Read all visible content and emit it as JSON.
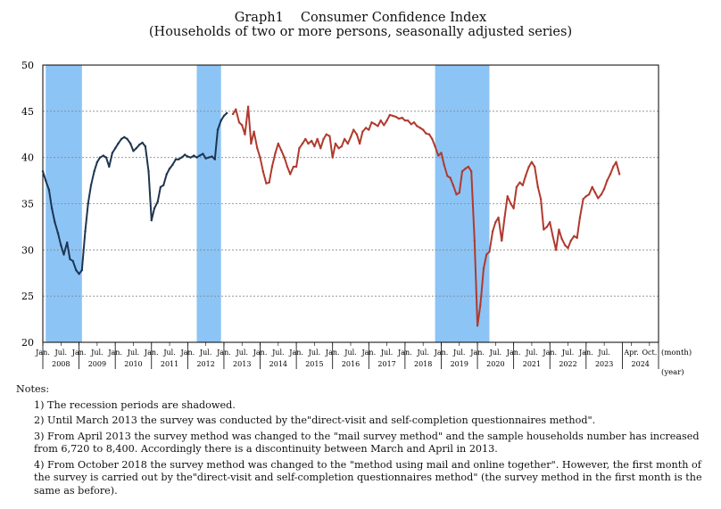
{
  "page": {
    "title": "Graph1　 Consumer Confidence Index",
    "subtitle": "(Households of two or more persons, seasonally adjusted series)"
  },
  "chart_data": {
    "type": "line",
    "title": "Consumer Confidence Index",
    "xlabel_month": "(month)",
    "xlabel_year": "(year)",
    "ylim": [
      20,
      50
    ],
    "yticks": [
      20,
      25,
      30,
      35,
      40,
      45,
      50
    ],
    "x_start_year": 2008,
    "x_end_year": 2024,
    "month_ticks": [
      {
        "label": "Jan.",
        "t": 2008.0
      },
      {
        "label": "Jul.",
        "t": 2008.5
      },
      {
        "label": "Jan.",
        "t": 2009.0
      },
      {
        "label": "Jul.",
        "t": 2009.5
      },
      {
        "label": "Jan.",
        "t": 2010.0
      },
      {
        "label": "Jul.",
        "t": 2010.5
      },
      {
        "label": "Jan.",
        "t": 2011.0
      },
      {
        "label": "Jul.",
        "t": 2011.5
      },
      {
        "label": "Jan.",
        "t": 2012.0
      },
      {
        "label": "Jul.",
        "t": 2012.5
      },
      {
        "label": "Jan.",
        "t": 2013.0
      },
      {
        "label": "Jul.",
        "t": 2013.5
      },
      {
        "label": "Jan.",
        "t": 2014.0
      },
      {
        "label": "Jul.",
        "t": 2014.5
      },
      {
        "label": "Jan.",
        "t": 2015.0
      },
      {
        "label": "Jul.",
        "t": 2015.5
      },
      {
        "label": "Jan.",
        "t": 2016.0
      },
      {
        "label": "Jul.",
        "t": 2016.5
      },
      {
        "label": "Jan.",
        "t": 2017.0
      },
      {
        "label": "Jul.",
        "t": 2017.5
      },
      {
        "label": "Jan.",
        "t": 2018.0
      },
      {
        "label": "Jul.",
        "t": 2018.5
      },
      {
        "label": "Jan.",
        "t": 2019.0
      },
      {
        "label": "Jul.",
        "t": 2019.5
      },
      {
        "label": "Jan.",
        "t": 2020.0
      },
      {
        "label": "Jul.",
        "t": 2020.5
      },
      {
        "label": "Jan.",
        "t": 2021.0
      },
      {
        "label": "Jul.",
        "t": 2021.5
      },
      {
        "label": "Jan.",
        "t": 2022.0
      },
      {
        "label": "Jul.",
        "t": 2022.5
      },
      {
        "label": "Jan.",
        "t": 2023.0
      },
      {
        "label": "Jul.",
        "t": 2023.5
      },
      {
        "label": "Apr.",
        "t": 2024.25
      },
      {
        "label": "Oct.",
        "t": 2024.75
      }
    ],
    "years": [
      "2008",
      "2009",
      "2010",
      "2011",
      "2012",
      "2013",
      "2014",
      "2015",
      "2016",
      "2017",
      "2018",
      "2019",
      "2020",
      "2021",
      "2022",
      "2023",
      "2024"
    ],
    "recession_periods": [
      [
        2008.08,
        2009.08
      ],
      [
        2012.25,
        2012.92
      ],
      [
        2018.83,
        2020.33
      ]
    ],
    "colors": {
      "interview_series": "#1f3550",
      "mail_series": "#b03a2e",
      "recession": "#8cc4f5",
      "grid": "#888888"
    },
    "series": [
      {
        "name": "visit and self-completion method (to Mar. 2013)",
        "color": "#1f3550",
        "points": [
          [
            2008.0,
            38.5
          ],
          [
            2008.08,
            37.5
          ],
          [
            2008.17,
            36.5
          ],
          [
            2008.25,
            34.5
          ],
          [
            2008.33,
            33.0
          ],
          [
            2008.42,
            31.8
          ],
          [
            2008.5,
            30.5
          ],
          [
            2008.58,
            29.5
          ],
          [
            2008.67,
            30.8
          ],
          [
            2008.75,
            29.0
          ],
          [
            2008.83,
            28.8
          ],
          [
            2008.92,
            27.8
          ],
          [
            2009.0,
            27.4
          ],
          [
            2009.08,
            27.8
          ],
          [
            2009.17,
            32.0
          ],
          [
            2009.25,
            35.0
          ],
          [
            2009.33,
            37.0
          ],
          [
            2009.42,
            38.5
          ],
          [
            2009.5,
            39.5
          ],
          [
            2009.58,
            40.0
          ],
          [
            2009.67,
            40.2
          ],
          [
            2009.75,
            40.0
          ],
          [
            2009.83,
            39.0
          ],
          [
            2009.92,
            40.5
          ],
          [
            2010.0,
            41.0
          ],
          [
            2010.08,
            41.5
          ],
          [
            2010.17,
            42.0
          ],
          [
            2010.25,
            42.2
          ],
          [
            2010.33,
            42.0
          ],
          [
            2010.42,
            41.5
          ],
          [
            2010.5,
            40.7
          ],
          [
            2010.58,
            41.0
          ],
          [
            2010.67,
            41.4
          ],
          [
            2010.75,
            41.6
          ],
          [
            2010.83,
            41.2
          ],
          [
            2010.92,
            38.5
          ],
          [
            2011.0,
            33.2
          ],
          [
            2011.08,
            34.5
          ],
          [
            2011.17,
            35.2
          ],
          [
            2011.25,
            36.8
          ],
          [
            2011.33,
            37.0
          ],
          [
            2011.42,
            38.2
          ],
          [
            2011.5,
            38.8
          ],
          [
            2011.58,
            39.2
          ],
          [
            2011.67,
            39.8
          ],
          [
            2011.75,
            39.8
          ],
          [
            2011.83,
            40.0
          ],
          [
            2011.92,
            40.3
          ],
          [
            2012.0,
            40.1
          ],
          [
            2012.08,
            40.0
          ],
          [
            2012.17,
            40.2
          ],
          [
            2012.25,
            40.0
          ],
          [
            2012.33,
            40.2
          ],
          [
            2012.42,
            40.4
          ],
          [
            2012.5,
            39.9
          ],
          [
            2012.58,
            40.0
          ],
          [
            2012.67,
            40.1
          ],
          [
            2012.75,
            39.8
          ],
          [
            2012.83,
            43.0
          ],
          [
            2012.92,
            44.0
          ],
          [
            2013.0,
            44.5
          ],
          [
            2013.08,
            44.8
          ]
        ]
      },
      {
        "name": "mail survey method (from Apr. 2013)",
        "color": "#b03a2e",
        "points": [
          [
            2013.25,
            44.7
          ],
          [
            2013.33,
            45.2
          ],
          [
            2013.42,
            43.8
          ],
          [
            2013.5,
            43.5
          ],
          [
            2013.58,
            42.5
          ],
          [
            2013.67,
            45.5
          ],
          [
            2013.75,
            41.5
          ],
          [
            2013.83,
            42.8
          ],
          [
            2013.92,
            41.0
          ],
          [
            2014.0,
            40.0
          ],
          [
            2014.08,
            38.5
          ],
          [
            2014.17,
            37.2
          ],
          [
            2014.25,
            37.3
          ],
          [
            2014.33,
            39.0
          ],
          [
            2014.42,
            40.5
          ],
          [
            2014.5,
            41.5
          ],
          [
            2014.58,
            40.8
          ],
          [
            2014.67,
            40.0
          ],
          [
            2014.75,
            39.0
          ],
          [
            2014.83,
            38.2
          ],
          [
            2014.92,
            39.0
          ],
          [
            2015.0,
            39.0
          ],
          [
            2015.08,
            41.0
          ],
          [
            2015.17,
            41.5
          ],
          [
            2015.25,
            42.0
          ],
          [
            2015.33,
            41.5
          ],
          [
            2015.42,
            41.8
          ],
          [
            2015.5,
            41.2
          ],
          [
            2015.58,
            42.0
          ],
          [
            2015.67,
            41.0
          ],
          [
            2015.75,
            42.0
          ],
          [
            2015.83,
            42.5
          ],
          [
            2015.92,
            42.3
          ],
          [
            2016.0,
            40.0
          ],
          [
            2016.08,
            41.5
          ],
          [
            2016.17,
            41.0
          ],
          [
            2016.25,
            41.2
          ],
          [
            2016.33,
            42.0
          ],
          [
            2016.42,
            41.5
          ],
          [
            2016.5,
            42.2
          ],
          [
            2016.58,
            43.0
          ],
          [
            2016.67,
            42.5
          ],
          [
            2016.75,
            41.5
          ],
          [
            2016.83,
            42.8
          ],
          [
            2016.92,
            43.2
          ],
          [
            2017.0,
            43.0
          ],
          [
            2017.08,
            43.8
          ],
          [
            2017.17,
            43.6
          ],
          [
            2017.25,
            43.4
          ],
          [
            2017.33,
            44.0
          ],
          [
            2017.42,
            43.5
          ],
          [
            2017.5,
            44.0
          ],
          [
            2017.58,
            44.6
          ],
          [
            2017.67,
            44.5
          ],
          [
            2017.75,
            44.4
          ],
          [
            2017.83,
            44.2
          ],
          [
            2017.92,
            44.3
          ],
          [
            2018.0,
            44.0
          ],
          [
            2018.08,
            44.0
          ],
          [
            2018.17,
            43.6
          ],
          [
            2018.25,
            43.8
          ],
          [
            2018.33,
            43.4
          ],
          [
            2018.42,
            43.2
          ],
          [
            2018.5,
            43.0
          ],
          [
            2018.58,
            42.6
          ],
          [
            2018.67,
            42.5
          ],
          [
            2018.75,
            42.0
          ],
          [
            2018.83,
            41.2
          ],
          [
            2018.92,
            40.2
          ],
          [
            2019.0,
            40.5
          ],
          [
            2019.08,
            39.2
          ],
          [
            2019.17,
            38.0
          ],
          [
            2019.25,
            37.8
          ],
          [
            2019.33,
            37.0
          ],
          [
            2019.42,
            36.0
          ],
          [
            2019.5,
            36.2
          ],
          [
            2019.58,
            38.5
          ],
          [
            2019.67,
            38.8
          ],
          [
            2019.75,
            39.0
          ],
          [
            2019.83,
            38.5
          ],
          [
            2019.92,
            31.0
          ],
          [
            2020.0,
            21.8
          ],
          [
            2020.08,
            24.0
          ],
          [
            2020.17,
            28.0
          ],
          [
            2020.25,
            29.5
          ],
          [
            2020.33,
            29.8
          ],
          [
            2020.42,
            32.0
          ],
          [
            2020.5,
            33.0
          ],
          [
            2020.58,
            33.5
          ],
          [
            2020.67,
            31.0
          ],
          [
            2020.75,
            33.5
          ],
          [
            2020.83,
            35.8
          ],
          [
            2020.92,
            35.0
          ],
          [
            2021.0,
            34.5
          ],
          [
            2021.08,
            36.8
          ],
          [
            2021.17,
            37.3
          ],
          [
            2021.25,
            37.0
          ],
          [
            2021.33,
            38.0
          ],
          [
            2021.42,
            39.0
          ],
          [
            2021.5,
            39.5
          ],
          [
            2021.58,
            39.0
          ],
          [
            2021.67,
            36.8
          ],
          [
            2021.75,
            35.5
          ],
          [
            2021.83,
            32.2
          ],
          [
            2021.92,
            32.5
          ],
          [
            2022.0,
            33.0
          ],
          [
            2022.08,
            31.5
          ],
          [
            2022.17,
            30.0
          ],
          [
            2022.25,
            32.2
          ],
          [
            2022.33,
            31.2
          ],
          [
            2022.42,
            30.5
          ],
          [
            2022.5,
            30.2
          ],
          [
            2022.58,
            31.0
          ],
          [
            2022.67,
            31.5
          ],
          [
            2022.75,
            31.3
          ],
          [
            2022.83,
            33.5
          ],
          [
            2022.92,
            35.5
          ],
          [
            2023.0,
            35.8
          ],
          [
            2023.08,
            36.0
          ],
          [
            2023.17,
            36.8
          ],
          [
            2023.25,
            36.2
          ],
          [
            2023.33,
            35.6
          ],
          [
            2023.42,
            36.0
          ],
          [
            2023.5,
            36.6
          ],
          [
            2023.58,
            37.5
          ],
          [
            2023.67,
            38.2
          ],
          [
            2023.75,
            39.0
          ],
          [
            2023.83,
            39.5
          ],
          [
            2023.92,
            38.2
          ]
        ]
      }
    ]
  },
  "notes": {
    "heading": "Notes:",
    "items": [
      "1) The recession periods are shadowed.",
      "2) Until March 2013 the survey was conducted by the\"direct-visit and self-completion questionnaires method\".",
      "3) From April 2013 the survey method was changed to the \"mail survey method\" and the sample households number has increased from 6,720 to 8,400. Accordingly there is a discontinuity between March and April in 2013.",
      "4) From October 2018 the survey method was changed to the \"method using mail and online together\". However, the first month of the survey is carried out by the\"direct-visit and self-completion questionnaires method\" (the survey method in the first month is the same as before)."
    ]
  }
}
